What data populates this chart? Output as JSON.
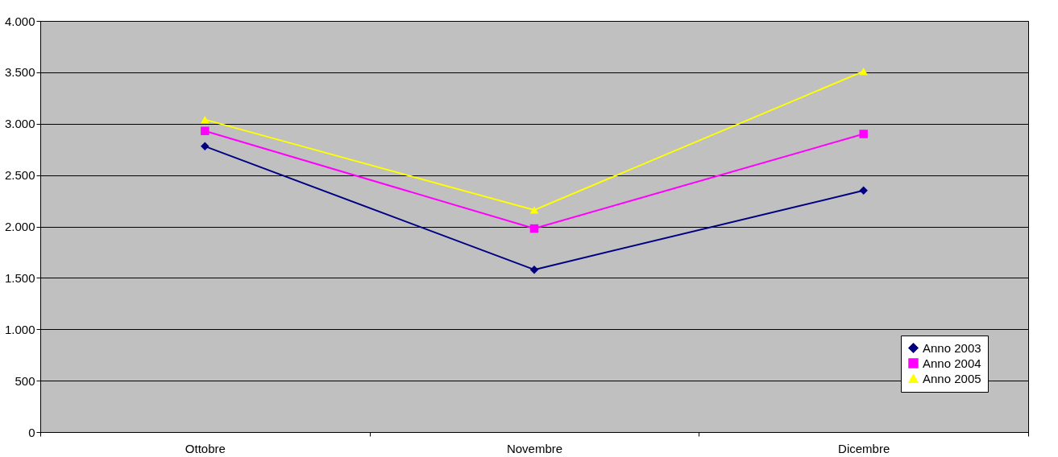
{
  "chart_data": {
    "type": "line",
    "categories": [
      "Ottobre",
      "Novembre",
      "Dicembre"
    ],
    "series": [
      {
        "name": "Anno 2003",
        "color": "#000080",
        "marker": "diamond",
        "values": [
          2780,
          1580,
          2350
        ]
      },
      {
        "name": "Anno 2004",
        "color": "#ff00ff",
        "marker": "square",
        "values": [
          2930,
          1980,
          2900
        ]
      },
      {
        "name": "Anno 2005",
        "color": "#ffff00",
        "marker": "triangle",
        "values": [
          3040,
          2160,
          3510
        ]
      }
    ],
    "ylim": [
      0,
      4000
    ],
    "yticks": [
      {
        "value": 0,
        "label": "0"
      },
      {
        "value": 500,
        "label": "500"
      },
      {
        "value": 1000,
        "label": "1.000"
      },
      {
        "value": 1500,
        "label": "1.500"
      },
      {
        "value": 2000,
        "label": "2.000"
      },
      {
        "value": 2500,
        "label": "2.500"
      },
      {
        "value": 3000,
        "label": "3.000"
      },
      {
        "value": 3500,
        "label": "3.500"
      },
      {
        "value": 4000,
        "label": "4.000"
      }
    ],
    "grid": "y",
    "legend": "bottom right",
    "line_style": "solid"
  }
}
